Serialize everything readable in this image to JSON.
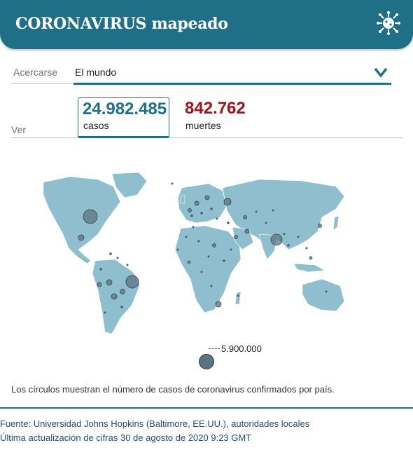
{
  "header": {
    "title": "CORONAVIRUS mapeado"
  },
  "zoom": {
    "label": "Acercarse",
    "value": "El mundo"
  },
  "view": {
    "label": "Ver"
  },
  "stats": {
    "cases": {
      "value": "24.982.485",
      "label": "casos"
    },
    "deaths": {
      "value": "842.762",
      "label": "muertes"
    }
  },
  "legend": {
    "value": "5.900.000"
  },
  "note": "Los círculos muestran el número de casos de coronavirus confirmados por país.",
  "footer": {
    "source": "Fuente: Universidad Johns Hopkins (Baltimore, EE.UU.), autoridades locales",
    "updated": "Última actualización de cifras 30 de agosto de 2020 9:23 GMT"
  },
  "colors": {
    "brand": "#1f6f86",
    "deaths": "#a1131b",
    "land": "#8fbfcf"
  }
}
